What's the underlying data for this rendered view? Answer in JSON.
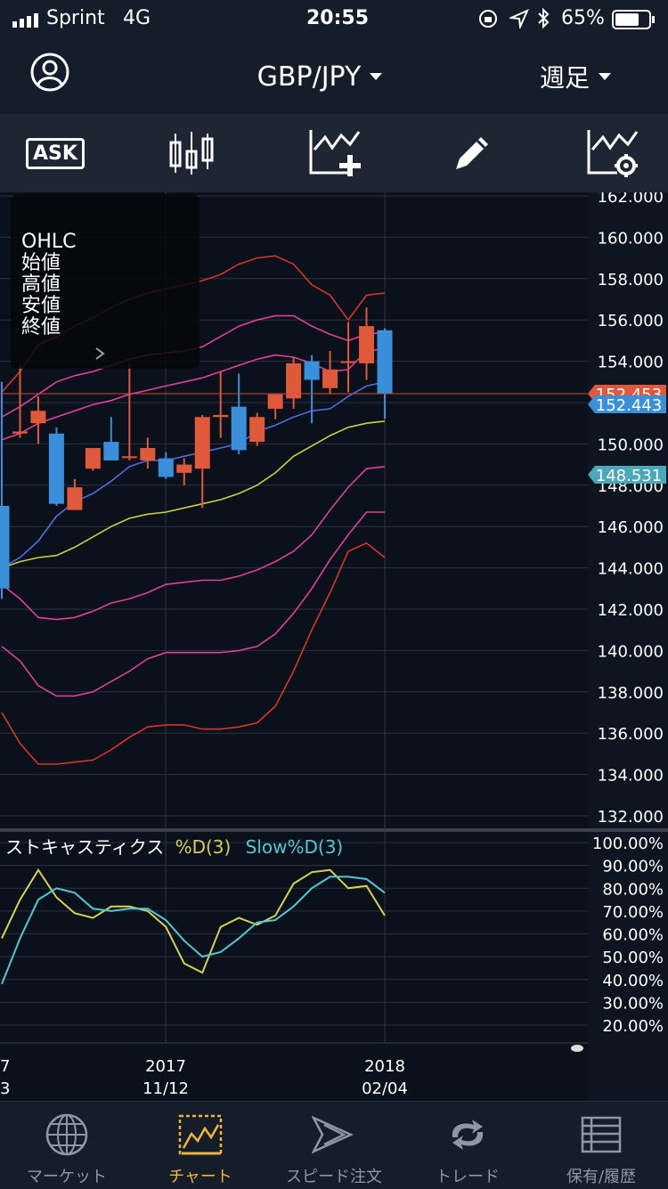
{
  "status_bar": {
    "carrier": "Sprint",
    "network": "4G",
    "time": "20:55",
    "battery": "65%"
  },
  "header": {
    "pair": "GBP/JPY",
    "timeframe": "週足"
  },
  "toolbar": {
    "ask_label": "ASK"
  },
  "ohlc_panel": {
    "title": "OHLC",
    "open": "始値",
    "high": "高値",
    "low": "安値",
    "close": "終値"
  },
  "price_labels": {
    "ask": "152.453",
    "bid": "152.443",
    "marker": "148.531"
  },
  "stochastic": {
    "title": "ストキャスティクス",
    "d_label": "%D(3)",
    "slowd_label": "Slow%D(3)"
  },
  "x_axis": {
    "labels": [
      {
        "year": "2017",
        "date": "11/12"
      },
      {
        "year": "2018",
        "date": "02/04"
      }
    ],
    "left_fragments": [
      "7",
      "3"
    ]
  },
  "colors": {
    "up": "#e0593a",
    "down": "#3a8fdb",
    "bb1": "#e0409a",
    "bb3": "#d8352a",
    "ma": "#4a6ee0",
    "ma2": "#c8d040",
    "stoch_d": "#d8d050",
    "stoch_slow": "#50c8d8",
    "active": "#f0b43a"
  },
  "nav": [
    {
      "label": "マーケット",
      "icon": "globe-icon"
    },
    {
      "label": "チャート",
      "icon": "chart-icon"
    },
    {
      "label": "スピード注文",
      "icon": "speed-order-icon"
    },
    {
      "label": "トレード",
      "icon": "trade-icon"
    },
    {
      "label": "保有/履歴",
      "icon": "list-icon"
    }
  ],
  "chart_data": [
    {
      "type": "candlestick",
      "title": "GBP/JPY",
      "timeframe": "週足",
      "ylim": [
        132,
        162
      ],
      "y_ticks": [
        "162.000",
        "160.000",
        "158.000",
        "156.000",
        "154.000",
        "152.000",
        "150.000",
        "148.000",
        "146.000",
        "144.000",
        "142.000",
        "140.000",
        "138.000",
        "136.000",
        "134.000",
        "132.000"
      ],
      "x_labels": [
        "2017 11/12",
        "2018 02/04"
      ],
      "candles": [
        {
          "o": 147.0,
          "h": 153.0,
          "l": 142.5,
          "c": 143.0
        },
        {
          "o": 150.5,
          "h": 153.8,
          "l": 150.3,
          "c": 150.6
        },
        {
          "o": 151.0,
          "h": 152.3,
          "l": 150.0,
          "c": 151.6
        },
        {
          "o": 150.5,
          "h": 150.8,
          "l": 147.0,
          "c": 147.1
        },
        {
          "o": 146.8,
          "h": 148.3,
          "l": 146.8,
          "c": 147.9
        },
        {
          "o": 148.8,
          "h": 149.8,
          "l": 148.7,
          "c": 149.8
        },
        {
          "o": 150.1,
          "h": 151.3,
          "l": 149.2,
          "c": 149.2
        },
        {
          "o": 149.4,
          "h": 153.9,
          "l": 149.2,
          "c": 149.4
        },
        {
          "o": 149.2,
          "h": 150.3,
          "l": 148.8,
          "c": 149.8
        },
        {
          "o": 149.3,
          "h": 149.6,
          "l": 148.3,
          "c": 148.4
        },
        {
          "o": 148.6,
          "h": 149.3,
          "l": 148.0,
          "c": 149.0
        },
        {
          "o": 148.8,
          "h": 151.4,
          "l": 146.9,
          "c": 151.3
        },
        {
          "o": 151.3,
          "h": 153.5,
          "l": 150.3,
          "c": 151.4
        },
        {
          "o": 151.8,
          "h": 153.4,
          "l": 149.5,
          "c": 149.7
        },
        {
          "o": 150.1,
          "h": 151.5,
          "l": 149.9,
          "c": 151.3
        },
        {
          "o": 151.7,
          "h": 152.4,
          "l": 151.2,
          "c": 152.4
        },
        {
          "o": 152.2,
          "h": 154.2,
          "l": 151.7,
          "c": 153.9
        },
        {
          "o": 154.0,
          "h": 154.3,
          "l": 151.0,
          "c": 153.1
        },
        {
          "o": 152.7,
          "h": 154.5,
          "l": 152.4,
          "c": 153.6
        },
        {
          "o": 154.0,
          "h": 155.9,
          "l": 152.5,
          "c": 154.0
        },
        {
          "o": 153.9,
          "h": 156.6,
          "l": 153.1,
          "c": 155.7
        },
        {
          "o": 155.5,
          "h": 155.6,
          "l": 151.2,
          "c": 152.443
        }
      ],
      "series": [
        {
          "name": "BB +3σ",
          "values": [
            152.5,
            153.5,
            154.8,
            155.2,
            155.7,
            156.1,
            156.6,
            157.0,
            157.3,
            157.5,
            157.7,
            157.9,
            158.2,
            158.7,
            159.0,
            159.1,
            158.7,
            157.7,
            157.2,
            156.0,
            157.2,
            157.3
          ]
        },
        {
          "name": "BB +2σ",
          "values": [
            151.3,
            151.8,
            152.4,
            153.0,
            153.3,
            153.5,
            153.8,
            154.1,
            154.3,
            154.4,
            154.5,
            154.7,
            155.2,
            155.7,
            156.0,
            156.2,
            156.2,
            155.7,
            155.3,
            155.0,
            155.3,
            155.4
          ]
        },
        {
          "name": "BB +1σ",
          "values": [
            150.2,
            150.5,
            151.0,
            151.3,
            151.6,
            151.9,
            152.1,
            152.4,
            152.6,
            152.8,
            153.0,
            153.2,
            153.5,
            153.8,
            154.1,
            154.3,
            154.2,
            153.9,
            153.5,
            153.6,
            154.5,
            154.6
          ]
        },
        {
          "name": "MA",
          "values": [
            144.0,
            144.5,
            145.3,
            146.5,
            147.2,
            147.6,
            148.2,
            148.9,
            149.2,
            149.2,
            149.4,
            149.6,
            149.8,
            150.0,
            150.6,
            150.9,
            151.3,
            151.6,
            151.7,
            152.3,
            152.8,
            153.0
          ]
        },
        {
          "name": "MA2",
          "values": [
            144.0,
            144.3,
            144.5,
            144.6,
            145.0,
            145.5,
            146.0,
            146.4,
            146.6,
            146.7,
            146.9,
            147.1,
            147.3,
            147.6,
            148.0,
            148.6,
            149.4,
            149.9,
            150.4,
            150.8,
            151.0,
            151.1
          ]
        },
        {
          "name": "BB -1σ",
          "values": [
            143.2,
            142.5,
            141.6,
            141.5,
            141.6,
            141.9,
            142.3,
            142.5,
            142.8,
            143.2,
            143.3,
            143.4,
            143.4,
            143.6,
            143.9,
            144.3,
            144.8,
            145.6,
            146.8,
            147.9,
            148.8,
            148.9
          ]
        },
        {
          "name": "BB -2σ",
          "values": [
            140.2,
            139.5,
            138.3,
            137.8,
            137.8,
            138.0,
            138.5,
            139.0,
            139.6,
            139.9,
            139.9,
            139.9,
            139.9,
            140.0,
            140.2,
            140.8,
            141.8,
            143.0,
            144.4,
            145.6,
            146.7,
            146.7
          ]
        },
        {
          "name": "BB -3σ",
          "values": [
            137.0,
            135.5,
            134.5,
            134.5,
            134.6,
            134.7,
            135.2,
            135.8,
            136.3,
            136.4,
            136.4,
            136.2,
            136.2,
            136.3,
            136.5,
            137.3,
            139.0,
            141.0,
            142.8,
            144.8,
            145.2,
            144.5
          ]
        }
      ]
    },
    {
      "type": "line",
      "title": "ストキャスティクス",
      "ylim": [
        20,
        100
      ],
      "y_ticks": [
        "100.00%",
        "90.00%",
        "80.00%",
        "70.00%",
        "60.00%",
        "50.00%",
        "40.00%",
        "30.00%",
        "20.00%"
      ],
      "series": [
        {
          "name": "%D(3)",
          "values": [
            58,
            75,
            88,
            76,
            69,
            67,
            72,
            72,
            70,
            63,
            47,
            43,
            63,
            67,
            64,
            68,
            82,
            87,
            88,
            80,
            81,
            68
          ]
        },
        {
          "name": "Slow%D(3)",
          "values": [
            38,
            58,
            75,
            80,
            78,
            71,
            70,
            71,
            71,
            66,
            57,
            50,
            52,
            58,
            65,
            66,
            72,
            80,
            85,
            85,
            84,
            78
          ]
        }
      ]
    }
  ]
}
